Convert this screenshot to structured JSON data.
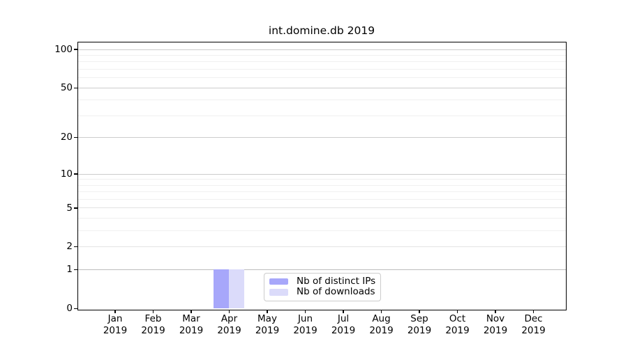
{
  "chart_data": {
    "type": "bar",
    "title": "int.domine.db 2019",
    "categories": [
      "Jan",
      "Feb",
      "Mar",
      "Apr",
      "May",
      "Jun",
      "Jul",
      "Aug",
      "Sep",
      "Oct",
      "Nov",
      "Dec"
    ],
    "x_tick_second_line": "2019",
    "series": [
      {
        "name": "Nb of distinct IPs",
        "color": "#a7a7fa",
        "values": [
          0,
          0,
          0,
          1,
          0,
          0,
          0,
          0,
          0,
          0,
          0,
          0
        ]
      },
      {
        "name": "Nb of downloads",
        "color": "#dbdbfa",
        "values": [
          0,
          0,
          0,
          1,
          0,
          0,
          0,
          0,
          0,
          0,
          0,
          0
        ]
      }
    ],
    "xlabel": "",
    "ylabel": "",
    "yscale": "log1p",
    "ylim": [
      0,
      113
    ],
    "yticks_major": [
      0,
      1,
      2,
      5,
      10,
      20,
      50,
      100
    ],
    "yticks_soft": [
      2,
      5
    ],
    "yticks_minor": [
      3,
      4,
      6,
      7,
      8,
      9,
      30,
      40,
      60,
      70,
      80,
      90
    ],
    "grid": "on",
    "legend_position": "inside bottom, left of center",
    "colors": {
      "grid_strong": "#bdbdbd",
      "grid_major": "#cccccc",
      "grid_soft": "#e3e3e3",
      "grid_minor": "#f0f0f0",
      "axis": "#000000",
      "background": "#ffffff"
    }
  }
}
